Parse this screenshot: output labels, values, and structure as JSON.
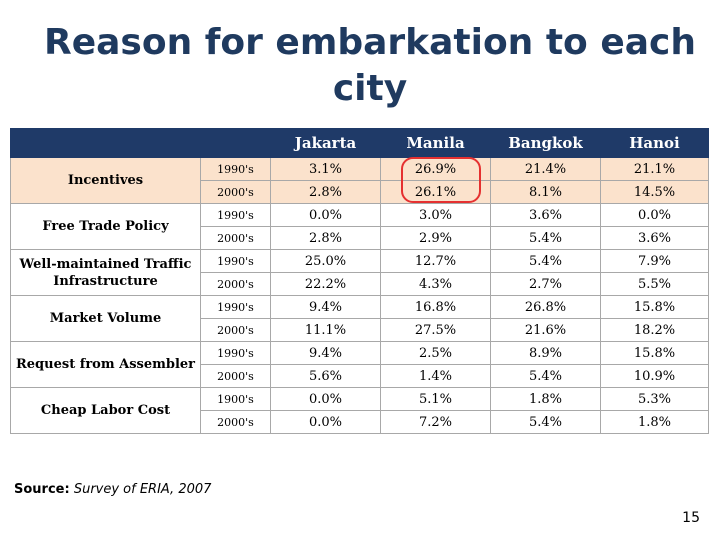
{
  "slide": {
    "title": "Reason for embarkation to each city",
    "source_label": "Source:",
    "source_text": "Survey of ERIA, 2007",
    "page_number": "15"
  },
  "table": {
    "columns": [
      "Jakarta",
      "Manila",
      "Bangkok",
      "Hanoi"
    ],
    "highlight_color": "#fbe2cc",
    "header_color": "#1f3a68",
    "circle_color": "#e53030",
    "groups": [
      {
        "factor": "Incentives",
        "rows": [
          {
            "decade": "1990's",
            "values": [
              "3.1%",
              "26.9%",
              "21.4%",
              "21.1%"
            ]
          },
          {
            "decade": "2000's",
            "values": [
              "2.8%",
              "26.1%",
              "8.1%",
              "14.5%"
            ]
          }
        ]
      },
      {
        "factor": "Free Trade Policy",
        "rows": [
          {
            "decade": "1990's",
            "values": [
              "0.0%",
              "3.0%",
              "3.6%",
              "0.0%"
            ]
          },
          {
            "decade": "2000's",
            "values": [
              "2.8%",
              "2.9%",
              "5.4%",
              "3.6%"
            ]
          }
        ]
      },
      {
        "factor": "Well-maintained Traffic Infrastructure",
        "rows": [
          {
            "decade": "1990's",
            "values": [
              "25.0%",
              "12.7%",
              "5.4%",
              "7.9%"
            ]
          },
          {
            "decade": "2000's",
            "values": [
              "22.2%",
              "4.3%",
              "2.7%",
              "5.5%"
            ]
          }
        ]
      },
      {
        "factor": "Market Volume",
        "rows": [
          {
            "decade": "1990's",
            "values": [
              "9.4%",
              "16.8%",
              "26.8%",
              "15.8%"
            ]
          },
          {
            "decade": "2000's",
            "values": [
              "11.1%",
              "27.5%",
              "21.6%",
              "18.2%"
            ]
          }
        ]
      },
      {
        "factor": "Request from Assembler",
        "rows": [
          {
            "decade": "1990's",
            "values": [
              "9.4%",
              "2.5%",
              "8.9%",
              "15.8%"
            ]
          },
          {
            "decade": "2000's",
            "values": [
              "5.6%",
              "1.4%",
              "5.4%",
              "10.9%"
            ]
          }
        ]
      },
      {
        "factor": "Cheap Labor Cost",
        "rows": [
          {
            "decade": "1900's",
            "values": [
              "0.0%",
              "5.1%",
              "1.8%",
              "5.3%"
            ]
          },
          {
            "decade": "2000's",
            "values": [
              "0.0%",
              "7.2%",
              "5.4%",
              "1.8%"
            ]
          }
        ]
      }
    ]
  }
}
